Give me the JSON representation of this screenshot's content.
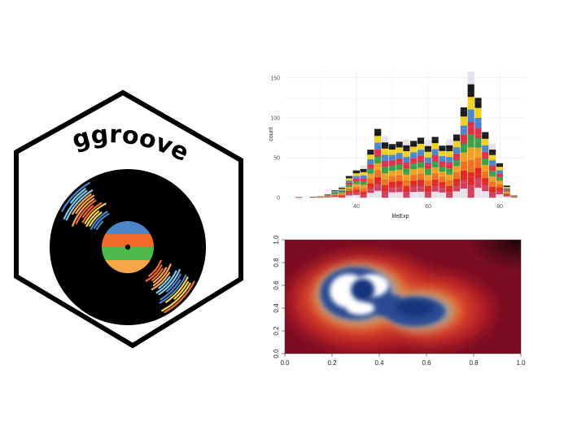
{
  "logo": {
    "name": "ggroove",
    "label_stripes": [
      "#4a86c8",
      "#f26b2a",
      "#4fb84a",
      "#f7a64a"
    ]
  },
  "chart_data": [
    {
      "type": "bar",
      "xlabel": "lifeExp",
      "ylabel": "count",
      "xlim": [
        20,
        87
      ],
      "ylim": [
        0,
        160
      ],
      "x_ticks": [
        40,
        60,
        80
      ],
      "y_ticks": [
        0,
        50,
        100,
        150
      ],
      "grid": true,
      "bin_width": 2,
      "bin_centers": [
        24,
        26,
        28,
        30,
        32,
        34,
        36,
        38,
        40,
        42,
        44,
        46,
        48,
        50,
        52,
        54,
        56,
        58,
        60,
        62,
        64,
        66,
        68,
        70,
        72,
        74,
        76,
        78,
        80,
        82,
        84
      ],
      "counts": [
        1,
        0,
        1,
        2,
        4,
        9,
        14,
        27,
        34,
        40,
        60,
        86,
        77,
        67,
        70,
        73,
        71,
        75,
        72,
        76,
        65,
        73,
        79,
        113,
        158,
        125,
        82,
        67,
        43,
        15,
        3
      ]
    },
    {
      "type": "heatmap",
      "xlim": [
        0,
        1
      ],
      "ylim": [
        0,
        1
      ],
      "x_ticks": [
        "0.0",
        "0.2",
        "0.4",
        "0.6",
        "0.8",
        "1.0"
      ],
      "y_ticks": [
        "0.0",
        "0.2",
        "0.4",
        "0.6",
        "0.8",
        "1.0"
      ],
      "colors": [
        "#7a0d22",
        "#b81e27",
        "#d8482a",
        "#e8803a",
        "#9aa0a8",
        "#2c4b92",
        "#12357e",
        "#ffffff"
      ]
    }
  ]
}
